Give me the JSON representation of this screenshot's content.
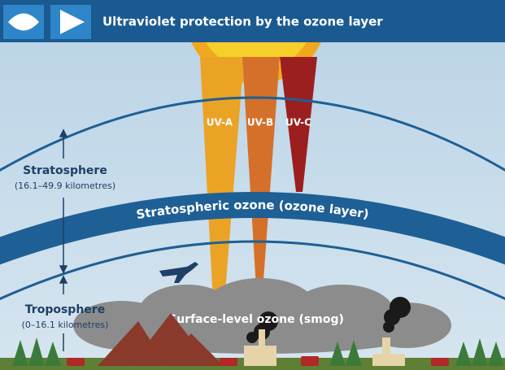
{
  "header": {
    "title": "Ultraviolet protection by the ozone layer"
  },
  "rays": [
    {
      "label": "UV-A"
    },
    {
      "label": "UV-B"
    },
    {
      "label": "UV-C"
    }
  ],
  "stratosphere": {
    "label": "Stratosphere",
    "range": "(16.1–49.9 kilometres)"
  },
  "ozone_layer": {
    "label": "Stratospheric ozone (ozone layer)"
  },
  "troposphere": {
    "label": "Troposphere",
    "range": "(0–16.1 kilometres)"
  },
  "smog": {
    "label": "Surface-level ozone (smog)"
  }
}
